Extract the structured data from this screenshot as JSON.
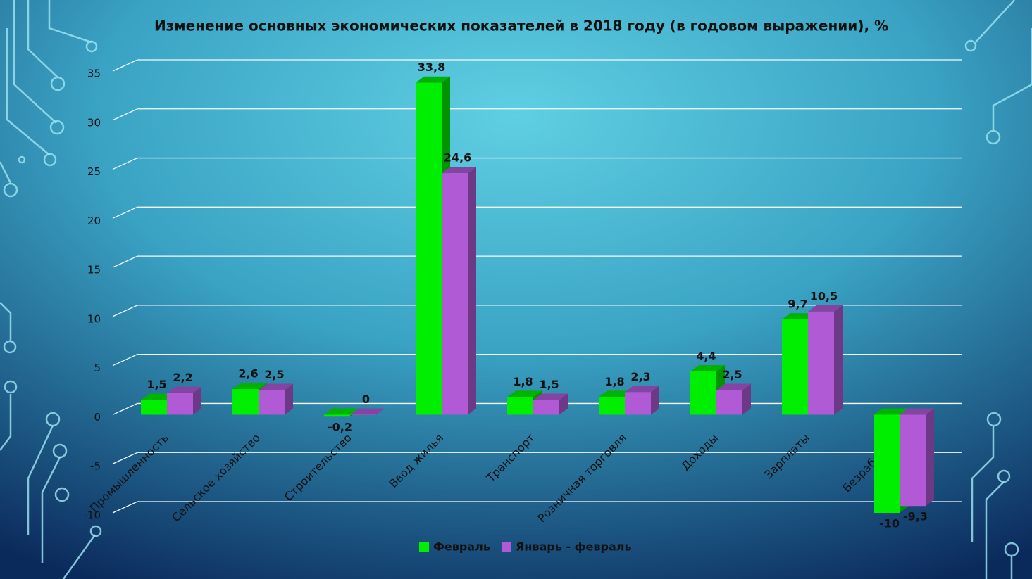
{
  "chart_data": {
    "type": "bar3d",
    "title": "Изменение основных экономических показателей в 2018 году (в годовом выражении), %",
    "categories": [
      "Промышленность",
      "Сельское хозяйство",
      "Строительство",
      "Ввод жилья",
      "Транспорт",
      "Розничная торговля",
      "Доходы",
      "Зарплаты",
      "Безработица"
    ],
    "series": [
      {
        "name": "Февраль",
        "color": "#00ee00",
        "values": [
          1.5,
          2.6,
          -0.2,
          33.8,
          1.8,
          1.8,
          4.4,
          9.7,
          -10
        ],
        "value_labels": [
          "1,5",
          "2,6",
          "-0,2",
          "33,8",
          "1,8",
          "1,8",
          "4,4",
          "9,7",
          "-10"
        ]
      },
      {
        "name": "Январь - февраль",
        "color": "#b05ad6",
        "values": [
          2.2,
          2.5,
          0,
          24.6,
          1.5,
          2.3,
          2.5,
          10.5,
          -9.3
        ],
        "value_labels": [
          "2,2",
          "2,5",
          "0",
          "24,6",
          "1,5",
          "2,3",
          "2,5",
          "10,5",
          "-9,3"
        ]
      }
    ],
    "ylim": [
      -10,
      35
    ],
    "yticks": [
      -10,
      -5,
      0,
      5,
      10,
      15,
      20,
      25,
      30,
      35
    ],
    "grid": true
  }
}
